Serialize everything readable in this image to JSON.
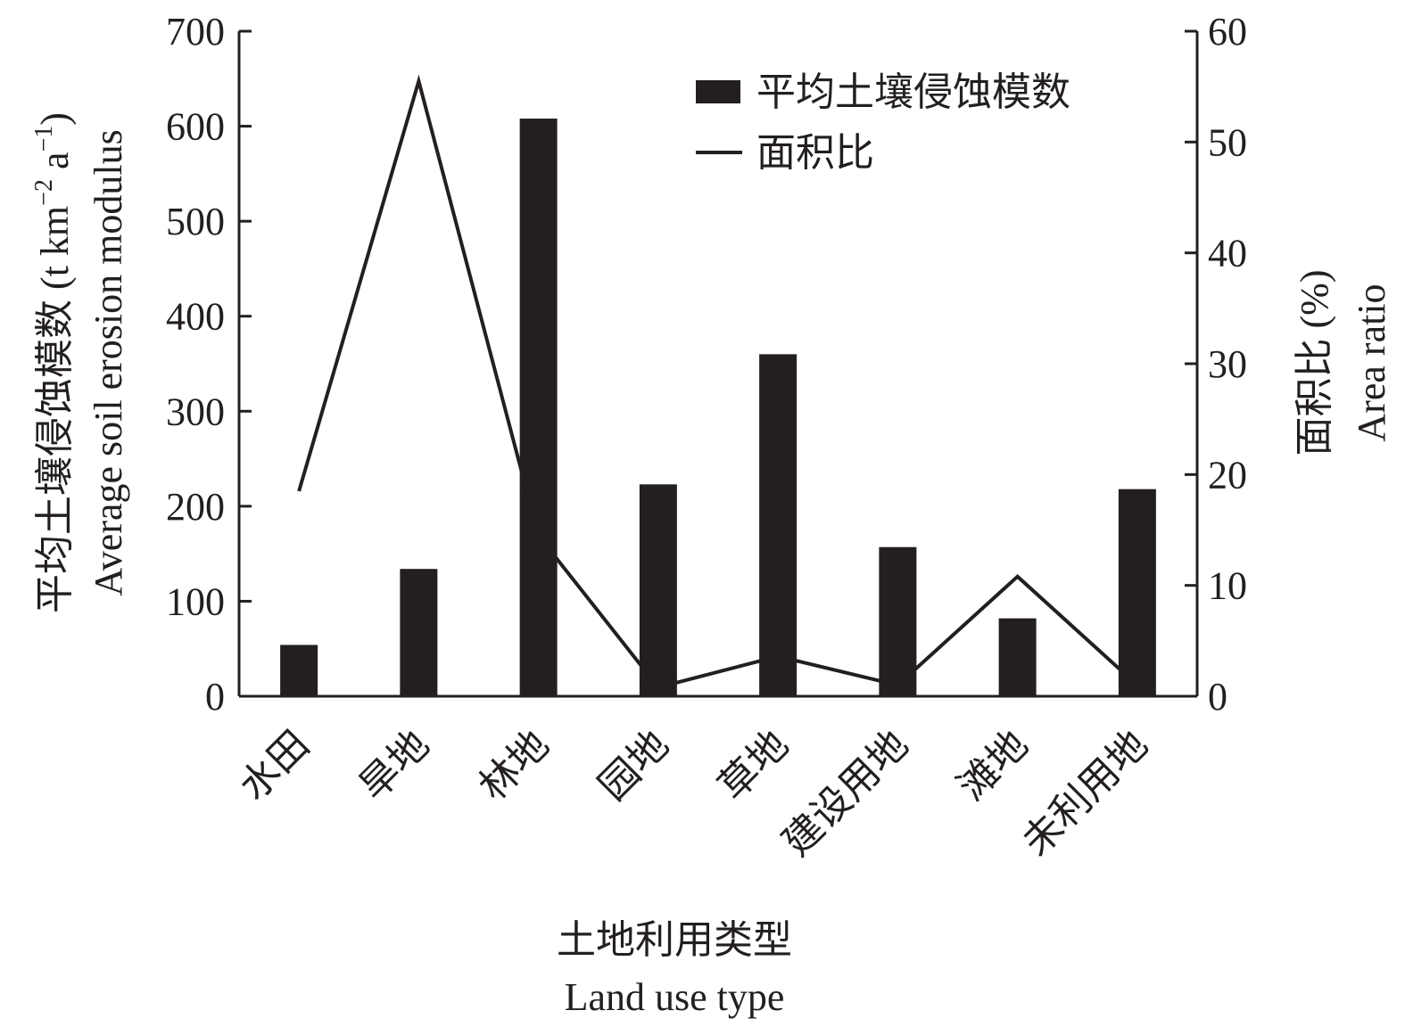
{
  "chart_data": {
    "type": "bar",
    "categories": [
      "水田",
      "旱地",
      "林地",
      "园地",
      "草地",
      "建设用地",
      "滩地",
      "未利用地"
    ],
    "series": [
      {
        "name": "平均土壤侵蚀模数",
        "type": "bar",
        "axis": "left",
        "values": [
          54,
          134,
          608,
          223,
          360,
          157,
          82,
          218
        ]
      },
      {
        "name": "面积比",
        "type": "line",
        "axis": "right",
        "values": [
          18.5,
          55.5,
          14.5,
          0.8,
          3.6,
          1.0,
          10.8,
          1.0
        ]
      }
    ],
    "xlabel_cn": "土地利用类型",
    "xlabel_en": "Land use type",
    "ylabel_left_cn": "平均土壤侵蚀模数",
    "ylabel_left_en": "Average soil erosion modulus",
    "ylabel_left_unit_prefix": "(t km",
    "ylabel_left_unit_exp1": "−2",
    "ylabel_left_unit_mid": " a",
    "ylabel_left_unit_exp2": "−1",
    "ylabel_left_unit_suffix": ")",
    "ylabel_right_cn": "面积比 (%)",
    "ylabel_right_en": "Area ratio",
    "ylim_left": [
      0,
      700
    ],
    "yticks_left": [
      0,
      100,
      200,
      300,
      400,
      500,
      600,
      700
    ],
    "ylim_right": [
      0,
      60
    ],
    "yticks_right": [
      0,
      10,
      20,
      30,
      40,
      50,
      60
    ],
    "legend_position": "top-right",
    "grid": false,
    "colors": {
      "bar": "#231f20",
      "line": "#231f20",
      "axis": "#231f20"
    }
  }
}
